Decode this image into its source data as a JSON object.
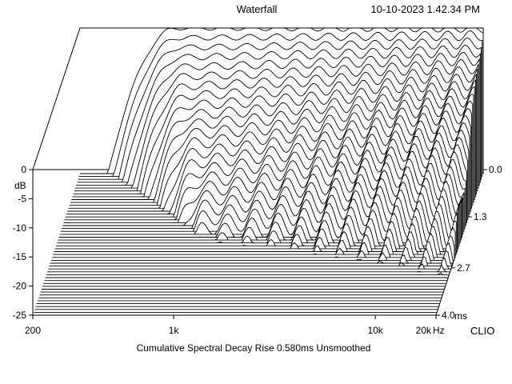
{
  "header": {
    "title": "Waterfall",
    "timestamp": "10-10-2023 1.42.34 PM"
  },
  "chart_data": {
    "type": "area",
    "title": "Waterfall",
    "subtitle": "Cumulative Spectral Decay   Rise 0.580ms   Unsmoothed",
    "ylabel": "dB",
    "xlabel": "Hz",
    "zlabel": "ms",
    "x_scale": "log",
    "xlim": [
      200,
      20000
    ],
    "ylim": [
      -25,
      0
    ],
    "zlim": [
      0,
      4.0
    ],
    "x_ticks": [
      {
        "value": 200,
        "label": "200"
      },
      {
        "value": 1000,
        "label": "1k"
      },
      {
        "value": 10000,
        "label": "10k"
      },
      {
        "value": 20000,
        "label": "20k"
      }
    ],
    "y_ticks": [
      {
        "value": 0,
        "label": "0"
      },
      {
        "value": -5,
        "label": "-5"
      },
      {
        "value": -10,
        "label": "-10"
      },
      {
        "value": -15,
        "label": "-15"
      },
      {
        "value": -20,
        "label": "-20"
      },
      {
        "value": -25,
        "label": "-25"
      }
    ],
    "z_ticks": [
      {
        "value": 0.0,
        "label": "0.0"
      },
      {
        "value": 1.3,
        "label": "1.3"
      },
      {
        "value": 2.7,
        "label": "2.7"
      },
      {
        "value": 4.0,
        "label": "4.0"
      }
    ],
    "brand": "CLIO",
    "slice_count": 50
  }
}
